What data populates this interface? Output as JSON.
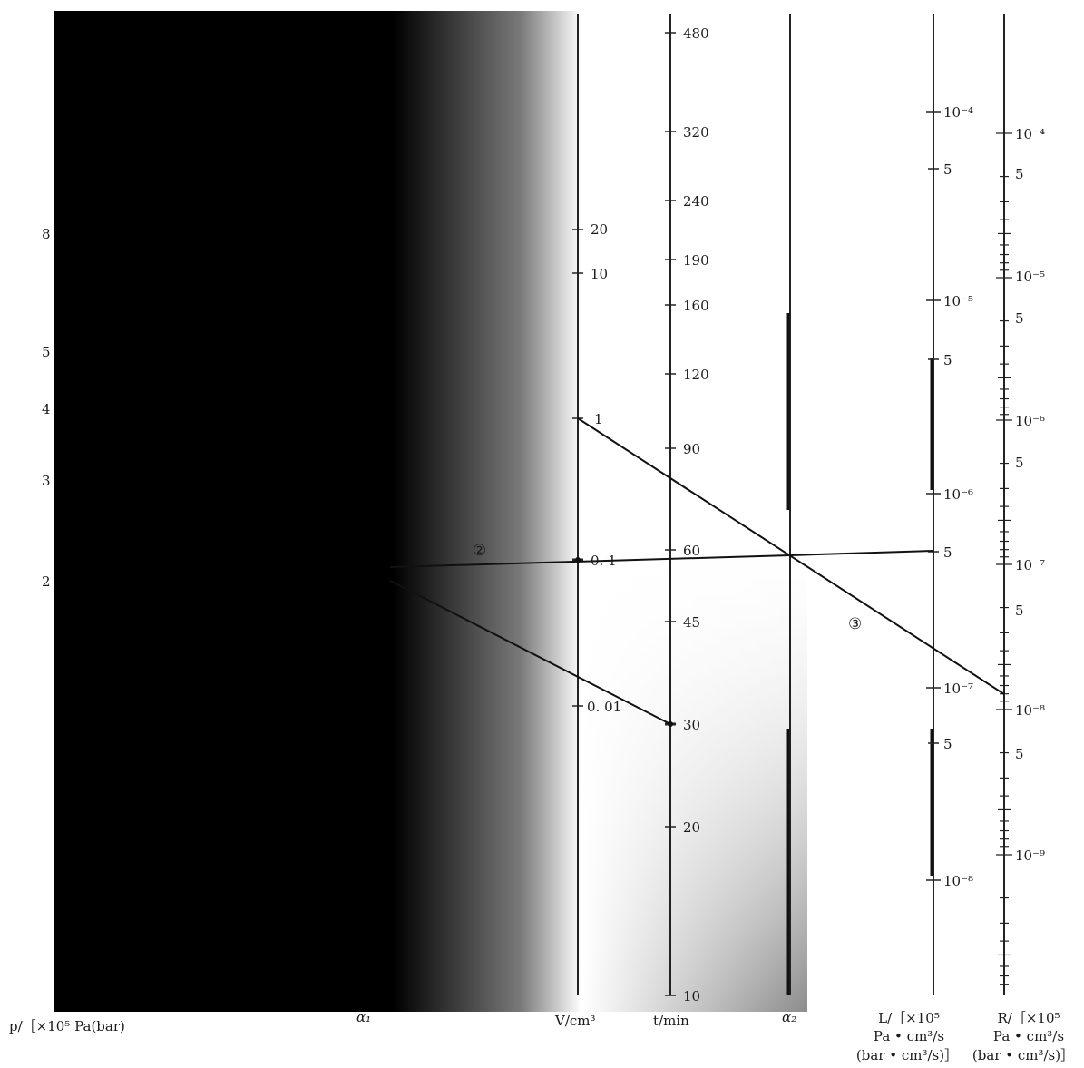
{
  "nomogram": {
    "background_gradient": {
      "dark": "#000000",
      "mid": "#8c8c8c",
      "light": "#ffffff"
    },
    "axes": [
      {
        "id": "p",
        "ticks": [
          "8",
          "5",
          "4",
          "3",
          "2"
        ],
        "label_lines": [
          "p/［×10⁵ Pa(bar)"
        ]
      },
      {
        "id": "a1",
        "ticks": [],
        "label_lines": [
          "α₁"
        ]
      },
      {
        "id": "V",
        "ticks": [
          "20",
          "10",
          "1",
          "0. 1",
          "0. 01"
        ],
        "label_lines": [
          "V/cm³"
        ]
      },
      {
        "id": "t",
        "ticks": [
          "480",
          "320",
          "240",
          "190",
          "160",
          "120",
          "90",
          "60",
          "45",
          "30",
          "20",
          "10"
        ],
        "label_lines": [
          "t/min"
        ]
      },
      {
        "id": "a2",
        "ticks": [],
        "label_lines": [
          "α₂"
        ]
      },
      {
        "id": "L",
        "ticks": [
          "10⁻⁴",
          "5",
          "10⁻⁵",
          "5",
          "10⁻⁶",
          "5",
          "10⁻⁷",
          "5",
          "10⁻⁸"
        ],
        "label_lines": [
          "L/［×10⁵",
          "Pa • cm³/s",
          "(bar • cm³/s)］"
        ]
      },
      {
        "id": "R",
        "ticks": [
          "10⁻⁴",
          "5",
          "10⁻⁵",
          "5",
          "10⁻⁶",
          "5",
          "10⁻⁷",
          "5",
          "10⁻⁸",
          "5",
          "10⁻⁹"
        ],
        "label_lines": [
          "R/［×10⁵",
          "Pa • cm³/s",
          "(bar • cm³/s)］"
        ]
      }
    ],
    "markers": [
      "②",
      "③"
    ]
  }
}
